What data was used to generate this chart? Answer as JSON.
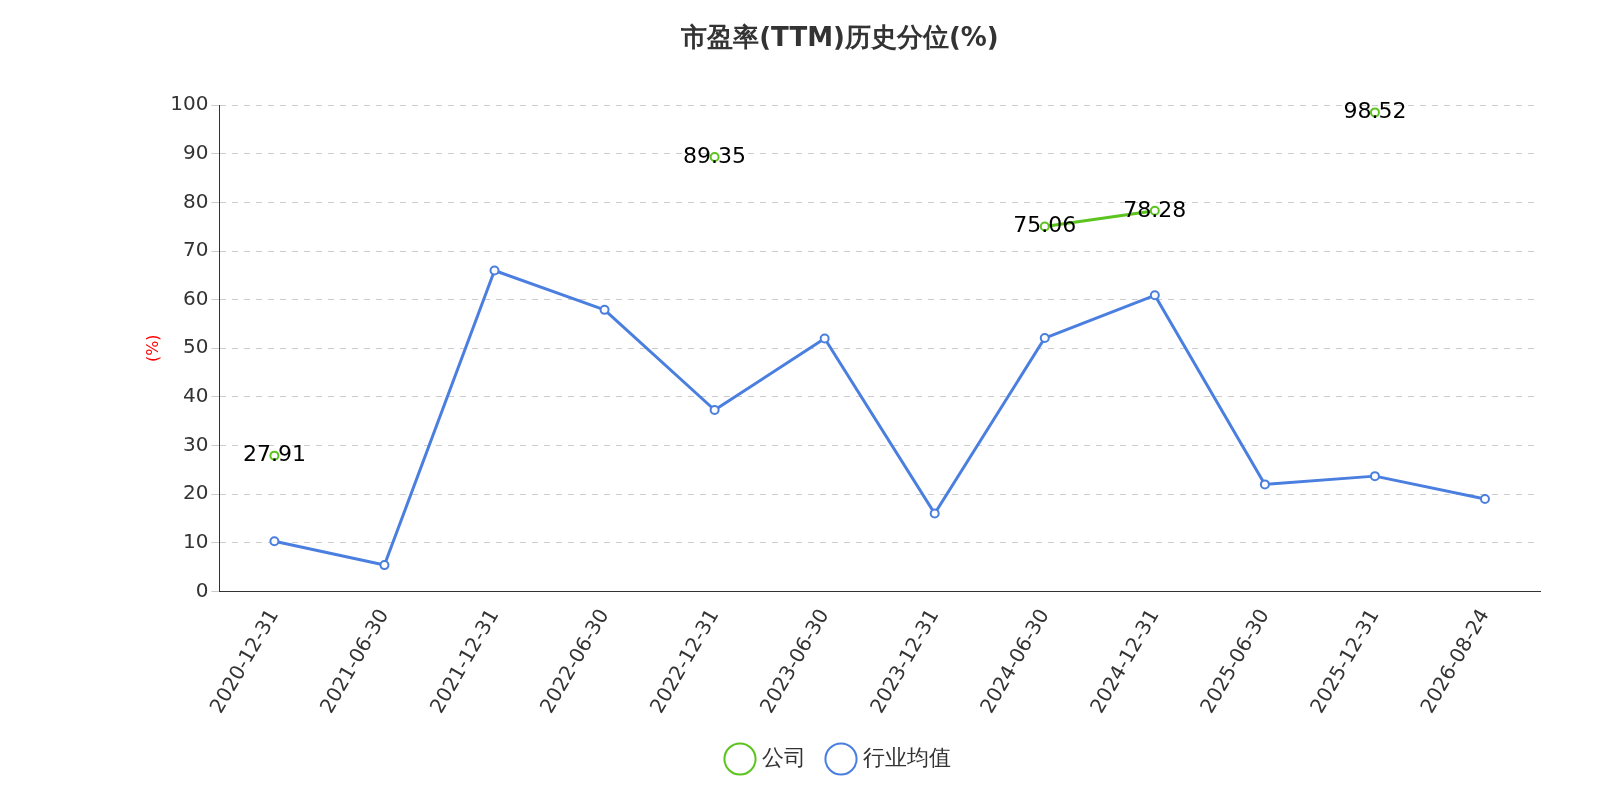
{
  "chart_data": {
    "type": "line",
    "title": "市盈率(TTM)历史分位(%)",
    "ylabel": "(%)",
    "categories": [
      "2020-12-31",
      "2021-06-30",
      "2021-12-31",
      "2022-06-30",
      "2022-12-31",
      "2023-06-30",
      "2023-12-31",
      "2024-06-30",
      "2024-12-31",
      "2025-06-30",
      "2025-12-31",
      "2026-08-24"
    ],
    "series": [
      {
        "name": "公司",
        "color": "#5cc41f",
        "values": [
          27.91,
          null,
          null,
          null,
          89.35,
          null,
          null,
          75.06,
          78.28,
          null,
          98.52,
          null
        ],
        "value_labels": [
          "27.91",
          null,
          null,
          null,
          "89.35",
          null,
          null,
          "75.06",
          "78.28",
          null,
          "98.52",
          null
        ]
      },
      {
        "name": "行业均值",
        "color": "#4a7fe0",
        "values": [
          10.3,
          5.4,
          66.0,
          57.9,
          37.3,
          52.0,
          16.0,
          52.1,
          60.9,
          22.0,
          23.7,
          19.0
        ]
      }
    ],
    "ylim": [
      0,
      100
    ],
    "yticks": [
      0,
      10,
      20,
      30,
      40,
      50,
      60,
      70,
      80,
      90,
      100
    ],
    "grid": "y",
    "legend": "bottom",
    "marker": "circle",
    "line_style": "solid"
  }
}
